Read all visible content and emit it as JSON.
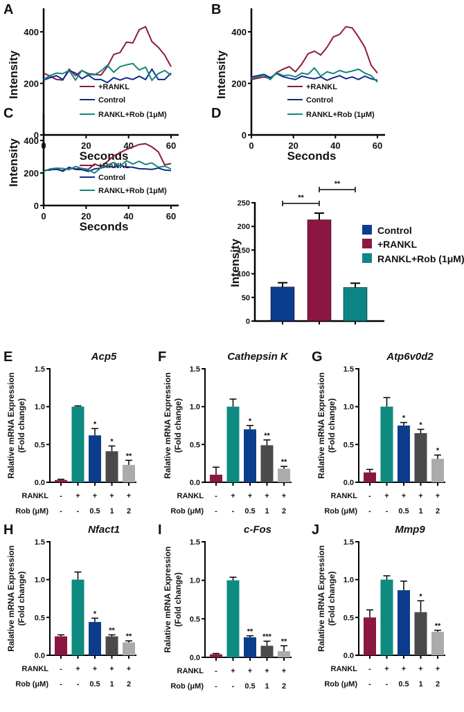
{
  "chart_data": [
    {
      "panel": "A",
      "type": "line",
      "xlabel": "Seconds",
      "ylabel": "Intensity",
      "xlim": [
        0,
        60
      ],
      "ylim": [
        0,
        500
      ],
      "xticks": [
        "0",
        "20",
        "40",
        "60"
      ],
      "yticks": [
        "0",
        "200",
        "400"
      ],
      "x": [
        0,
        3,
        6,
        9,
        12,
        15,
        18,
        21,
        24,
        27,
        30,
        33,
        36,
        39,
        42,
        45,
        48,
        51,
        54,
        57,
        60
      ],
      "series": [
        {
          "name": "+RANKL",
          "color": "#8b1a3c",
          "values": [
            240,
            228,
            215,
            213,
            255,
            230,
            250,
            238,
            235,
            232,
            265,
            312,
            320,
            360,
            357,
            408,
            420,
            362,
            340,
            310,
            265
          ]
        },
        {
          "name": "Control",
          "color": "#0d2b8f",
          "values": [
            213,
            222,
            230,
            215,
            250,
            240,
            218,
            232,
            215,
            215,
            203,
            222,
            213,
            222,
            215,
            228,
            215,
            255,
            215,
            215,
            240
          ]
        },
        {
          "name": "RANKL+Rob (1μM)",
          "color": "#12867a",
          "values": [
            215,
            230,
            240,
            238,
            250,
            213,
            250,
            235,
            233,
            248,
            270,
            243,
            265,
            272,
            277,
            252,
            263,
            212,
            238,
            250,
            232
          ]
        }
      ]
    },
    {
      "panel": "B",
      "type": "line",
      "xlabel": "Seconds",
      "ylabel": "Intensity",
      "xlim": [
        0,
        60
      ],
      "ylim": [
        0,
        500
      ],
      "xticks": [
        "0",
        "20",
        "40",
        "60"
      ],
      "yticks": [
        "0",
        "200",
        "400"
      ],
      "x": [
        0,
        3,
        6,
        9,
        12,
        15,
        18,
        21,
        24,
        27,
        30,
        33,
        36,
        39,
        42,
        45,
        48,
        51,
        54,
        57,
        60
      ],
      "series": [
        {
          "name": "+RANKL",
          "color": "#8b1a3c",
          "values": [
            215,
            220,
            225,
            218,
            242,
            255,
            265,
            245,
            275,
            315,
            325,
            310,
            340,
            380,
            390,
            420,
            415,
            380,
            340,
            270,
            240
          ]
        },
        {
          "name": "Control",
          "color": "#0d2b8f",
          "values": [
            225,
            230,
            235,
            222,
            238,
            226,
            220,
            215,
            228,
            222,
            218,
            225,
            212,
            222,
            230,
            218,
            225,
            215,
            228,
            218,
            212
          ]
        },
        {
          "name": "RANKL+Rob (1μM)",
          "color": "#12867a",
          "values": [
            220,
            225,
            232,
            215,
            242,
            230,
            232,
            225,
            240,
            235,
            260,
            228,
            245,
            238,
            250,
            242,
            248,
            255,
            240,
            230,
            205
          ]
        }
      ]
    },
    {
      "panel": "C",
      "type": "line",
      "xlabel": "Seconds",
      "ylabel": "Intensity",
      "xlim": [
        0,
        60
      ],
      "ylim": [
        0,
        560
      ],
      "xticks": [
        "0",
        "20",
        "40",
        "60"
      ],
      "yticks": [
        "0",
        "200",
        "400"
      ],
      "x": [
        0,
        3,
        6,
        9,
        12,
        15,
        18,
        21,
        24,
        27,
        30,
        33,
        36,
        39,
        42,
        45,
        48,
        51,
        54,
        57,
        60
      ],
      "series": [
        {
          "name": "+RANKL",
          "color": "#8b1a3c",
          "values": [
            215,
            220,
            222,
            215,
            232,
            225,
            228,
            222,
            255,
            240,
            270,
            305,
            325,
            345,
            360,
            375,
            380,
            360,
            330,
            250,
            258
          ]
        },
        {
          "name": "Control",
          "color": "#0d2b8f",
          "values": [
            215,
            218,
            228,
            210,
            235,
            222,
            220,
            210,
            225,
            230,
            242,
            235,
            245,
            238,
            235,
            226,
            225,
            222,
            230,
            218,
            215
          ]
        },
        {
          "name": "RANKL+Rob (1μM)",
          "color": "#12867a",
          "values": [
            210,
            225,
            230,
            228,
            220,
            240,
            228,
            218,
            200,
            232,
            248,
            265,
            242,
            275,
            255,
            272,
            252,
            262,
            235,
            242,
            225
          ]
        }
      ]
    },
    {
      "panel": "D",
      "type": "bar",
      "ylabel": "Intensity",
      "ylim": [
        0,
        250
      ],
      "yticks": [
        "0",
        "50",
        "100",
        "150",
        "200",
        "250"
      ],
      "categories": [
        "Control",
        "+RANKL",
        "RANKL+Rob (1μM)"
      ],
      "values": [
        72,
        214,
        71
      ],
      "errors": [
        9,
        14,
        9
      ],
      "colors": [
        "#0b3d8c",
        "#8b1642",
        "#0e8585"
      ],
      "significance": [
        {
          "from": 0,
          "to": 1,
          "label": "**"
        },
        {
          "from": 1,
          "to": 2,
          "label": "**"
        }
      ]
    },
    {
      "panel": "E",
      "type": "bar",
      "title": "Acp5",
      "ylabel": [
        "Ralative mRNA Expression",
        "(Fold change)"
      ],
      "ylim": [
        0,
        1.5
      ],
      "yticks": [
        "0.0",
        "0.5",
        "1.0",
        "1.5"
      ],
      "row_labels": [
        "RANKL",
        "Rob (μM)"
      ],
      "rankl": [
        "-",
        "+",
        "+",
        "+",
        "+"
      ],
      "rob": [
        "-",
        "-",
        "0.5",
        "1",
        "2"
      ],
      "values": [
        0.03,
        1.0,
        0.62,
        0.41,
        0.23
      ],
      "errors": [
        0.01,
        0.01,
        0.09,
        0.07,
        0.06
      ],
      "sig": [
        "",
        "",
        "*",
        "*",
        "**"
      ]
    },
    {
      "panel": "F",
      "type": "bar",
      "title": "Cathepsin K",
      "ylabel": [
        "Ralative mRNA Expression",
        "(Fold change)"
      ],
      "ylim": [
        0,
        1.5
      ],
      "yticks": [
        "0.0",
        "0.5",
        "1.0",
        "1.5"
      ],
      "row_labels": [
        "RANKL",
        "Rob (μM)"
      ],
      "rankl": [
        "-",
        "+",
        "+",
        "+",
        "+"
      ],
      "rob": [
        "-",
        "-",
        "0.5",
        "1",
        "2"
      ],
      "values": [
        0.1,
        1.0,
        0.7,
        0.49,
        0.18
      ],
      "errors": [
        0.1,
        0.1,
        0.05,
        0.07,
        0.03
      ],
      "sig": [
        "",
        "",
        "*",
        "**",
        "**"
      ]
    },
    {
      "panel": "G",
      "type": "bar",
      "title": "Atp6v0d2",
      "ylabel": [
        "Ralative mRNA Expression",
        "(Fold change)"
      ],
      "ylim": [
        0,
        1.5
      ],
      "yticks": [
        "0.0",
        "0.5",
        "1.0",
        "1.5"
      ],
      "row_labels": [
        "RANKL",
        "Rob (μM)"
      ],
      "rankl": [
        "-",
        "+",
        "+",
        "+",
        "+"
      ],
      "rob": [
        "-",
        "-",
        "0.5",
        "1",
        "2"
      ],
      "values": [
        0.13,
        1.0,
        0.75,
        0.65,
        0.31
      ],
      "errors": [
        0.04,
        0.12,
        0.04,
        0.05,
        0.05
      ],
      "sig": [
        "",
        "",
        "*",
        "*",
        "*"
      ]
    },
    {
      "panel": "H",
      "type": "bar",
      "title": "Nfact1",
      "ylabel": [
        "Ralative mRNA Expression",
        "(Fold change)"
      ],
      "ylim": [
        0,
        1.5
      ],
      "yticks": [
        "0.0",
        "0.5",
        "1.0",
        "1.5"
      ],
      "row_labels": [
        "RANKL",
        "Rob (μM)"
      ],
      "rankl": [
        "-",
        "+",
        "+",
        "+",
        "+"
      ],
      "rob": [
        "-",
        "-",
        "0.5",
        "1",
        "2"
      ],
      "values": [
        0.25,
        1.0,
        0.44,
        0.25,
        0.17
      ],
      "errors": [
        0.02,
        0.1,
        0.05,
        0.02,
        0.02
      ],
      "sig": [
        "",
        "",
        "*",
        "**",
        "**"
      ]
    },
    {
      "panel": "I",
      "type": "bar",
      "title": "c-Fos",
      "ylabel": [
        "Ralative mRNA Expression",
        "(Fold change)"
      ],
      "ylim": [
        0,
        1.5
      ],
      "yticks": [
        "0.0",
        "0.5",
        "1.0",
        "1.5"
      ],
      "row_labels": [
        "RANKL",
        "Rob (μM)"
      ],
      "rankl": [
        "-",
        "+",
        "+",
        "+",
        "+"
      ],
      "rob": [
        "-",
        "-",
        "0.5",
        "1",
        "2"
      ],
      "values": [
        0.04,
        1.0,
        0.26,
        0.15,
        0.08
      ],
      "errors": [
        0.01,
        0.04,
        0.02,
        0.06,
        0.07
      ],
      "sig": [
        "",
        "",
        "**",
        "***",
        "**"
      ]
    },
    {
      "panel": "J",
      "type": "bar",
      "title": "Mmp9",
      "ylabel": [
        "Ralative mRNA Expression",
        "(Fold change)"
      ],
      "ylim": [
        0,
        1.5
      ],
      "yticks": [
        "0.0",
        "0.5",
        "1.0",
        "1.5"
      ],
      "row_labels": [
        "RANKL",
        "Rob (μM)"
      ],
      "rankl": [
        "-",
        "+",
        "+",
        "+",
        "+"
      ],
      "rob": [
        "-",
        "-",
        "0.5",
        "1",
        "2"
      ],
      "values": [
        0.5,
        1.0,
        0.86,
        0.57,
        0.31
      ],
      "errors": [
        0.1,
        0.05,
        0.12,
        0.15,
        0.02
      ],
      "sig": [
        "",
        "",
        "",
        "*",
        "**"
      ]
    }
  ],
  "bar_colors": [
    "#8b1642",
    "#0e8a80",
    "#0b3d8c",
    "#4a4a4a",
    "#ababab"
  ]
}
